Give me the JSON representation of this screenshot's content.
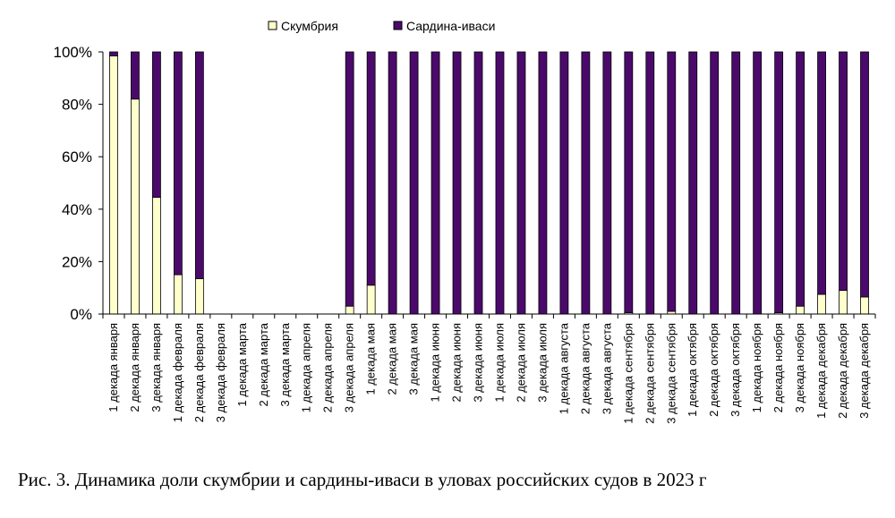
{
  "caption": "Рис. 3. Динамика доли скумбрии и сардины-иваси в уловах российских судов в 2023 г",
  "colors": {
    "mackerel": "#ffffcc",
    "sardine": "#4b0a6b",
    "stroke": "#000000"
  },
  "chart_data": {
    "type": "bar",
    "stacked": true,
    "title": "",
    "xlabel": "",
    "ylabel": "",
    "ylim": [
      0,
      100
    ],
    "yticks": [
      "0%",
      "20%",
      "40%",
      "60%",
      "80%",
      "100%"
    ],
    "legend_position": "top-center",
    "categories": [
      "1 декада января",
      "2 декада января",
      "3 декада января",
      "1 декада февраля",
      "2 декада февраля",
      "3 декада февраля",
      "1 декада марта",
      "2 декада марта",
      "3 декада марта",
      "1 декада апреля",
      "2 декада апреля",
      "3 декада апреля",
      "1 декада мая",
      "2 декада мая",
      "3 декада мая",
      "1 декада июня",
      "2 декада июня",
      "3 декада июня",
      "1 декада июля",
      "2 декада июля",
      "3 декада июля",
      "1 декада августа",
      "2 декада августа",
      "3 декада августа",
      "1 декада сентября",
      "2 декада сентября",
      "3 декада сентября",
      "1 декада октября",
      "2 декада октября",
      "3 декада октября",
      "1 декада ноября",
      "2 декада ноября",
      "3 декада ноября",
      "1 декада декабря",
      "2 декада декабря",
      "3 декада декабря"
    ],
    "series": [
      {
        "name": "Скумбрия",
        "values": [
          98.5,
          82,
          44.5,
          15,
          13.5,
          null,
          null,
          null,
          null,
          null,
          null,
          3,
          11,
          0,
          0,
          0,
          0,
          0,
          0,
          0,
          0,
          0,
          0,
          0,
          0.5,
          0,
          1,
          0,
          0,
          0,
          0,
          0.5,
          3,
          7.5,
          9,
          6.5
        ]
      },
      {
        "name": "Сардина-иваси",
        "values": [
          1.5,
          18,
          55.5,
          85,
          86.5,
          null,
          null,
          null,
          null,
          null,
          null,
          97,
          89,
          100,
          100,
          100,
          100,
          100,
          100,
          100,
          100,
          100,
          100,
          100,
          99.5,
          100,
          99,
          100,
          100,
          100,
          100,
          99.5,
          97,
          92.5,
          91,
          93.5
        ]
      }
    ]
  }
}
